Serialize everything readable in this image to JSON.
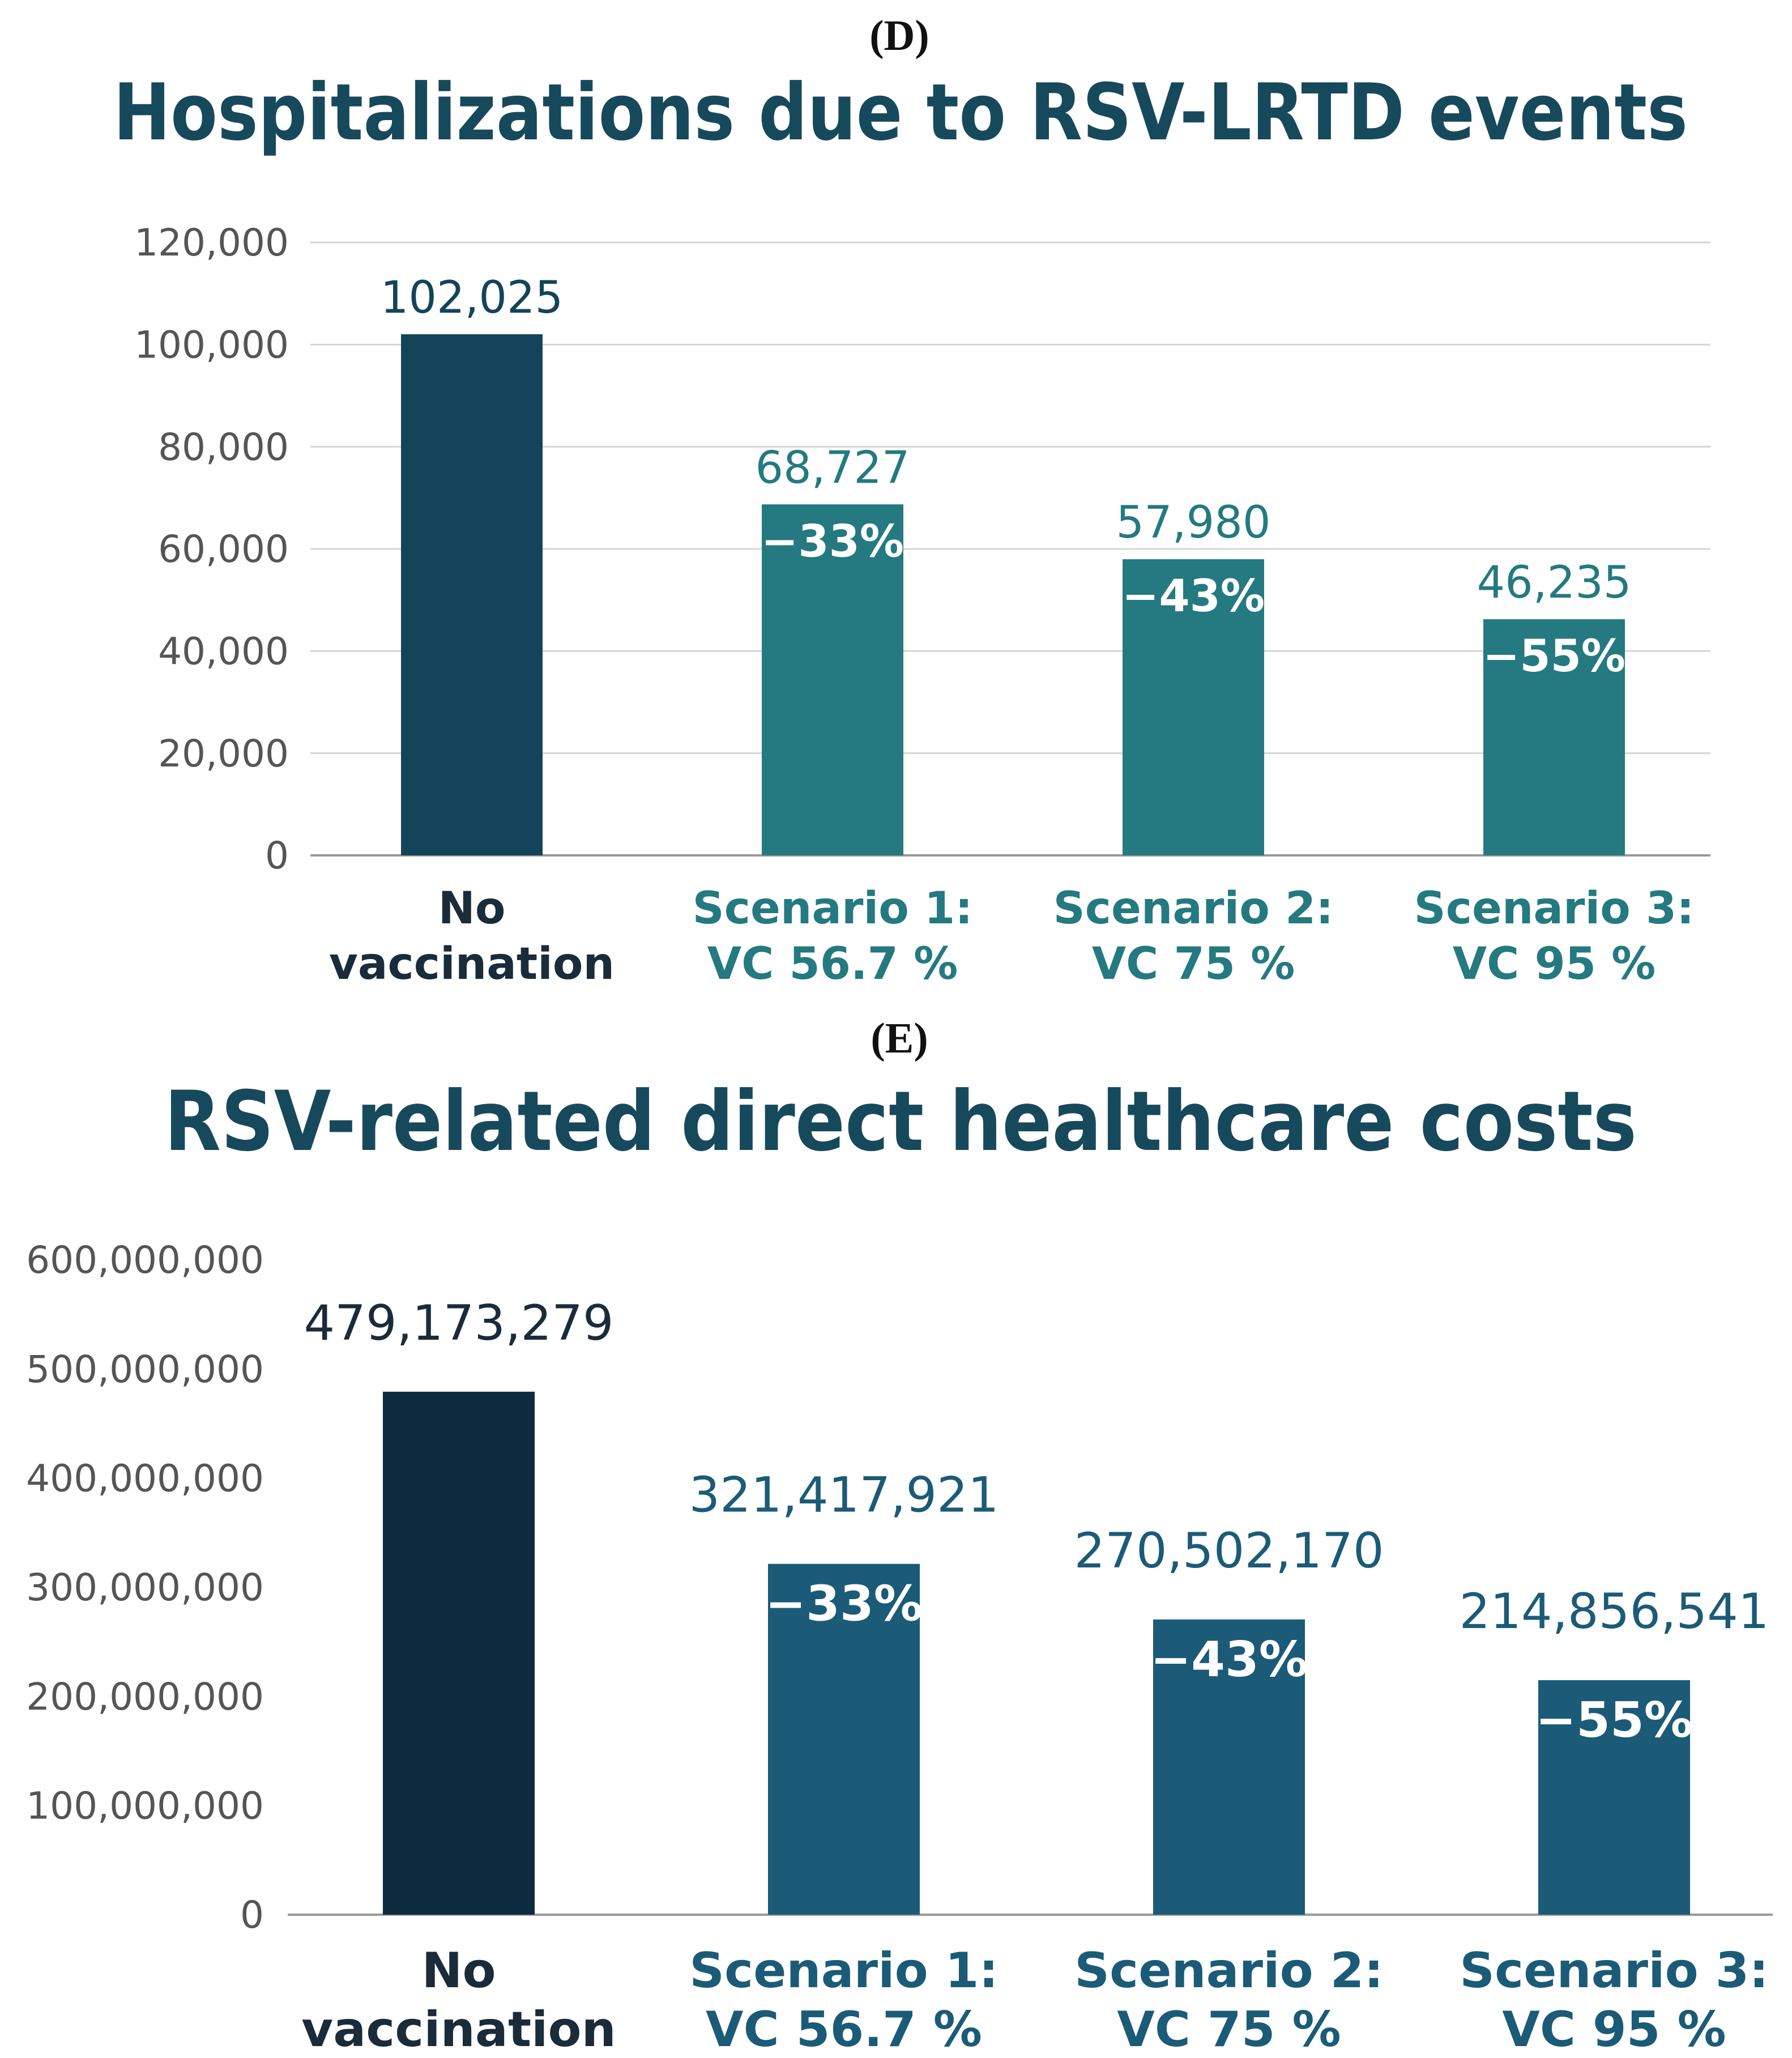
{
  "colors": {
    "baseline_d": "#14445a",
    "scenario_d": "#247a80",
    "value_d": "#247a80",
    "baseline_e": "#0d2b3e",
    "scenario_e": "#1b5b77",
    "value_e": "#1b5b77",
    "dark_text": "#1a2b3a"
  },
  "chart_data": [
    {
      "panel": "(D)",
      "type": "bar",
      "title": "Hospitalizations due to RSV-LRTD events",
      "xlabel": "",
      "ylabel": "",
      "ylim": [
        0,
        120000
      ],
      "yticks": [
        0,
        20000,
        40000,
        60000,
        80000,
        100000,
        120000
      ],
      "ytick_labels": [
        "0",
        "20,000",
        "40,000",
        "60,000",
        "80,000",
        "100,000",
        "120,000"
      ],
      "grid": true,
      "categories": [
        [
          "No",
          "vaccination"
        ],
        [
          "Scenario 1:",
          "VC 56.7 %"
        ],
        [
          "Scenario 2:",
          "VC 75 %"
        ],
        [
          "Scenario 3:",
          "VC 95 %"
        ]
      ],
      "values": [
        102025,
        68727,
        57980,
        46235
      ],
      "value_labels": [
        "102,025",
        "68,727",
        "57,980",
        "46,235"
      ],
      "change_labels": [
        "",
        "−33%",
        "−43%",
        "−55%"
      ]
    },
    {
      "panel": "(E)",
      "type": "bar",
      "title": "RSV-related direct healthcare costs",
      "xlabel": "",
      "ylabel": "",
      "ylim": [
        0,
        600000000
      ],
      "yticks": [
        0,
        100000000,
        200000000,
        300000000,
        400000000,
        500000000,
        600000000
      ],
      "ytick_labels": [
        "0",
        "100,000,000",
        "200,000,000",
        "300,000,000",
        "400,000,000",
        "500,000,000",
        "600,000,000"
      ],
      "grid": false,
      "categories": [
        [
          "No",
          "vaccination"
        ],
        [
          "Scenario 1:",
          "VC 56.7 %"
        ],
        [
          "Scenario 2:",
          "VC 75 %"
        ],
        [
          "Scenario 3:",
          "VC 95 %"
        ]
      ],
      "values": [
        479173279,
        321417921,
        270502170,
        214856541
      ],
      "value_labels": [
        "479,173,279",
        "321,417,921",
        "270,502,170",
        "214,856,541"
      ],
      "change_labels": [
        "",
        "−33%",
        "−43%",
        "−55%"
      ]
    }
  ]
}
